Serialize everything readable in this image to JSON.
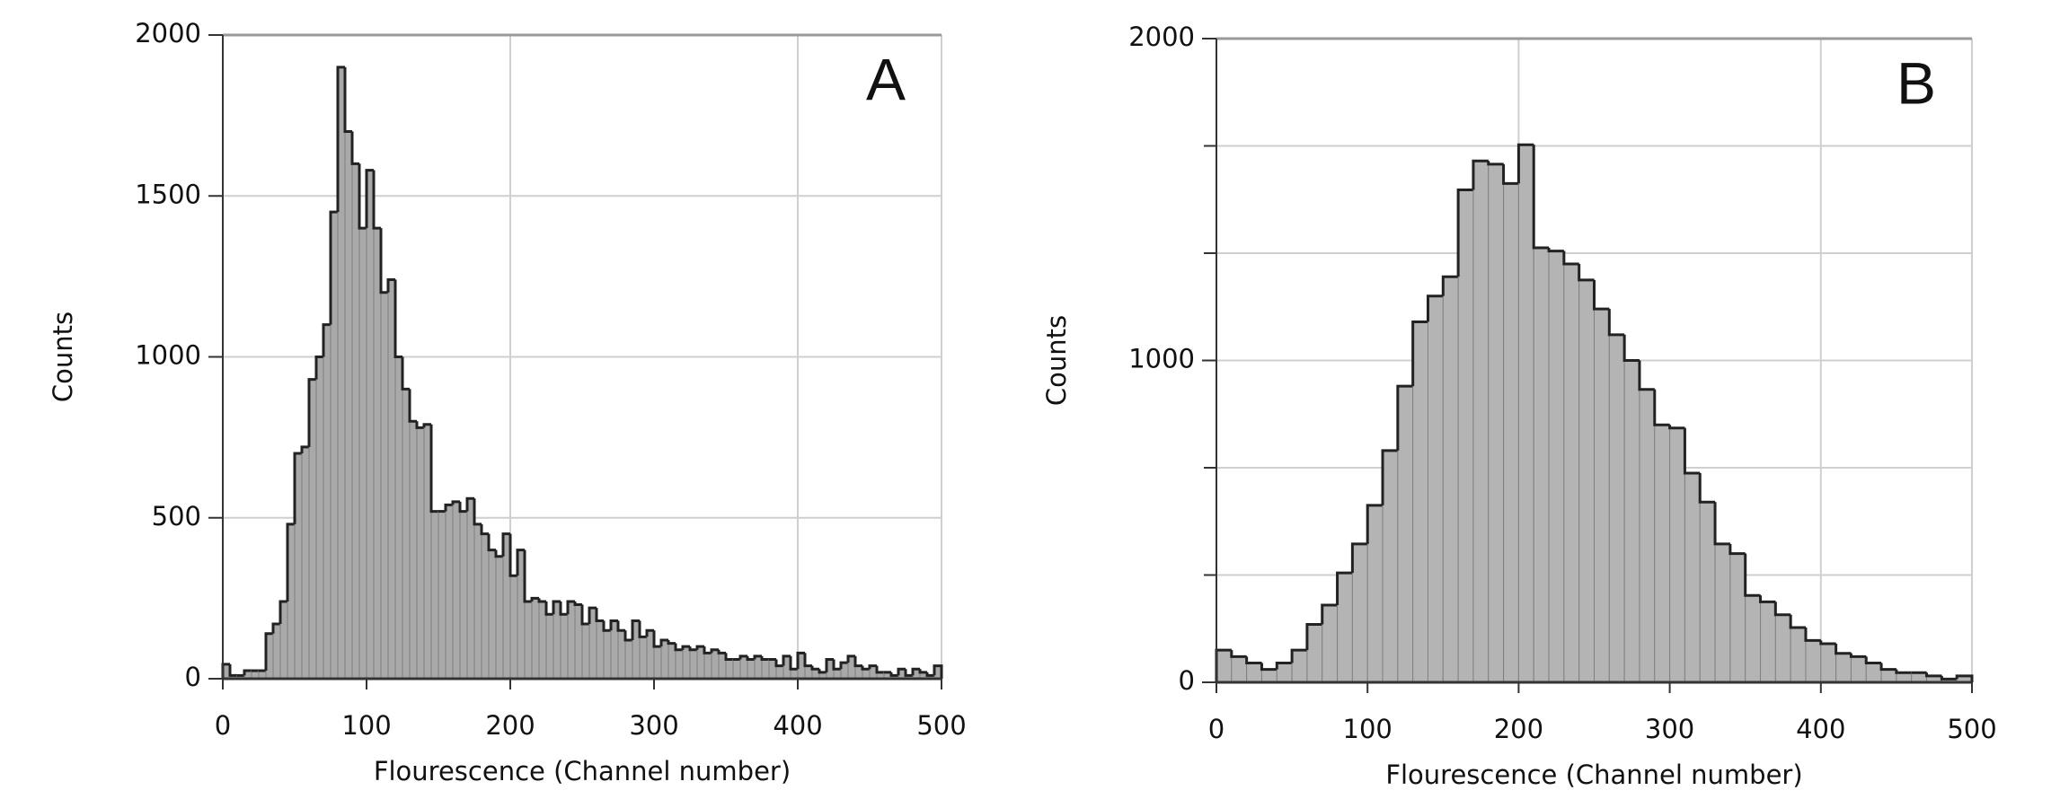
{
  "chart_data": [
    {
      "type": "histogram",
      "annotation": "A",
      "xlabel": "Flourescence  (Channel number)",
      "ylabel": "Counts",
      "bins": [
        0,
        5,
        10,
        15,
        20,
        25,
        30,
        35,
        40,
        45,
        50,
        55,
        60,
        65,
        70,
        75,
        80,
        85,
        90,
        95,
        100,
        105,
        110,
        115,
        120,
        125,
        130,
        135,
        140,
        145,
        150,
        155,
        160,
        165,
        170,
        175,
        180,
        185,
        190,
        195,
        200,
        205,
        210,
        215,
        220,
        225,
        230,
        235,
        240,
        245,
        250,
        255,
        260,
        265,
        270,
        275,
        280,
        285,
        290,
        295,
        300,
        305,
        310,
        315,
        320,
        325,
        330,
        335,
        340,
        345,
        350,
        355,
        360,
        365,
        370,
        375,
        380,
        385,
        390,
        395,
        400,
        405,
        410,
        415,
        420,
        425,
        430,
        435,
        440,
        445,
        450,
        455,
        460,
        465,
        470,
        475,
        480,
        485,
        490,
        495,
        500
      ],
      "values": [
        45,
        10,
        10,
        25,
        25,
        25,
        140,
        170,
        240,
        480,
        700,
        720,
        930,
        1000,
        1100,
        1450,
        1900,
        1700,
        1600,
        1400,
        1580,
        1400,
        1200,
        1240,
        1000,
        900,
        800,
        780,
        790,
        520,
        520,
        540,
        550,
        520,
        560,
        480,
        450,
        400,
        380,
        450,
        320,
        400,
        240,
        250,
        240,
        200,
        240,
        200,
        240,
        230,
        170,
        220,
        180,
        150,
        180,
        150,
        120,
        180,
        130,
        150,
        100,
        120,
        110,
        90,
        100,
        90,
        100,
        80,
        90,
        80,
        60,
        60,
        70,
        60,
        70,
        60,
        60,
        40,
        70,
        30,
        80,
        40,
        30,
        20,
        60,
        30,
        50,
        70,
        40,
        30,
        40,
        20,
        20,
        10,
        30,
        10,
        30,
        20,
        10,
        40
      ],
      "color": "#a9a9a9",
      "xlim": [
        0,
        500
      ],
      "ylim": [
        0,
        2000
      ],
      "xticks": [
        0,
        100,
        200,
        300,
        400,
        500
      ],
      "yticks": [
        0,
        500,
        1000,
        1500,
        2000
      ],
      "xgrid": [
        200,
        400
      ],
      "grid": true
    },
    {
      "type": "histogram",
      "annotation": "B",
      "xlabel": "Flourescence  (Channel number)",
      "ylabel": "Counts",
      "bins": [
        0,
        10,
        20,
        30,
        40,
        50,
        60,
        70,
        80,
        90,
        100,
        110,
        120,
        130,
        140,
        150,
        160,
        170,
        180,
        190,
        200,
        210,
        220,
        230,
        240,
        250,
        260,
        270,
        280,
        290,
        300,
        310,
        320,
        330,
        340,
        350,
        360,
        370,
        380,
        390,
        400,
        410,
        420,
        430,
        440,
        450,
        460,
        470,
        480,
        490,
        500
      ],
      "values": [
        100,
        80,
        60,
        40,
        60,
        100,
        180,
        240,
        340,
        430,
        550,
        720,
        920,
        1120,
        1200,
        1260,
        1530,
        1620,
        1610,
        1550,
        1670,
        1350,
        1340,
        1300,
        1250,
        1160,
        1080,
        1000,
        910,
        800,
        790,
        650,
        560,
        430,
        400,
        270,
        250,
        210,
        170,
        130,
        120,
        90,
        80,
        60,
        40,
        30,
        30,
        20,
        10,
        20
      ],
      "color": "#b4b4b4",
      "xlim": [
        0,
        500
      ],
      "ylim": [
        0,
        2000
      ],
      "xticks": [
        0,
        100,
        200,
        300,
        400,
        500
      ],
      "yticks": [
        0,
        1000,
        2000
      ],
      "yminor_ticks": [
        333.3,
        666.7,
        1333.3,
        1666.7
      ],
      "xgrid": [
        200,
        400
      ],
      "grid": true
    }
  ]
}
